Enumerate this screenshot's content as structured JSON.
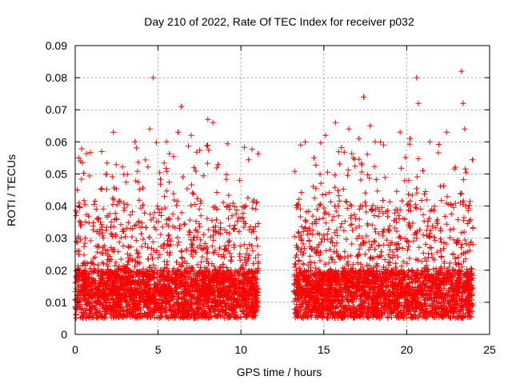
{
  "chart_data": {
    "type": "scatter",
    "title": "Day 210 of 2022, Rate Of TEC Index for receiver p032",
    "xlabel": "GPS time / hours",
    "ylabel": "ROTI / TECUs",
    "xlim": [
      0,
      25
    ],
    "ylim": [
      0,
      0.09
    ],
    "x_ticks": [
      "0",
      "5",
      "10",
      "15",
      "20",
      "25"
    ],
    "y_ticks": [
      "0",
      "0.01",
      "0.02",
      "0.03",
      "0.04",
      "0.05",
      "0.06",
      "0.07",
      "0.08",
      "0.09"
    ],
    "grid": true,
    "marker": "+",
    "series_color": "#ff0000",
    "data_gap_hours": [
      11.05,
      13.2
    ],
    "coverage_hours": [
      [
        0.0,
        11.05
      ],
      [
        13.2,
        24.0
      ]
    ],
    "typical_range": [
      0.005,
      0.02
    ],
    "notable_points": [
      {
        "x": 0.2,
        "y": 0.055
      },
      {
        "x": 0.3,
        "y": 0.054
      },
      {
        "x": 1.6,
        "y": 0.057
      },
      {
        "x": 2.3,
        "y": 0.063
      },
      {
        "x": 3.6,
        "y": 0.06
      },
      {
        "x": 4.5,
        "y": 0.064
      },
      {
        "x": 4.7,
        "y": 0.08
      },
      {
        "x": 5.5,
        "y": 0.06
      },
      {
        "x": 6.2,
        "y": 0.063
      },
      {
        "x": 6.4,
        "y": 0.071
      },
      {
        "x": 7.0,
        "y": 0.062
      },
      {
        "x": 8.0,
        "y": 0.067
      },
      {
        "x": 8.3,
        "y": 0.066
      },
      {
        "x": 10.9,
        "y": 0.039
      },
      {
        "x": 13.6,
        "y": 0.059
      },
      {
        "x": 14.4,
        "y": 0.055
      },
      {
        "x": 15.1,
        "y": 0.062
      },
      {
        "x": 15.7,
        "y": 0.066
      },
      {
        "x": 16.5,
        "y": 0.064
      },
      {
        "x": 17.1,
        "y": 0.061
      },
      {
        "x": 17.4,
        "y": 0.074
      },
      {
        "x": 17.8,
        "y": 0.065
      },
      {
        "x": 18.1,
        "y": 0.06
      },
      {
        "x": 18.6,
        "y": 0.059
      },
      {
        "x": 19.6,
        "y": 0.063
      },
      {
        "x": 20.2,
        "y": 0.061
      },
      {
        "x": 20.6,
        "y": 0.08
      },
      {
        "x": 20.7,
        "y": 0.072
      },
      {
        "x": 21.4,
        "y": 0.06
      },
      {
        "x": 22.4,
        "y": 0.063
      },
      {
        "x": 23.3,
        "y": 0.082
      },
      {
        "x": 23.4,
        "y": 0.072
      },
      {
        "x": 23.5,
        "y": 0.064
      }
    ]
  }
}
